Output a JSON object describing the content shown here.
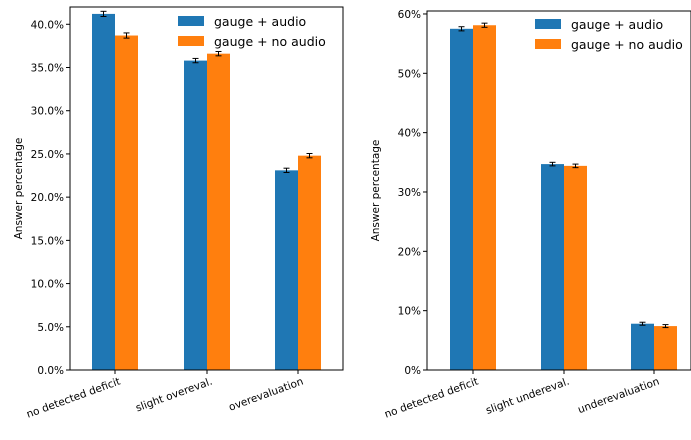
{
  "chart_data": [
    {
      "type": "bar",
      "categories": [
        "no detected deficit",
        "slight overeval.",
        "overevaluation"
      ],
      "series": [
        {
          "name": "gauge + audio",
          "values": [
            41.2,
            35.8,
            23.1
          ],
          "errors": [
            0.3,
            0.25,
            0.25
          ],
          "color": "#1f77b4"
        },
        {
          "name": "gauge + no audio",
          "values": [
            38.7,
            36.6,
            24.8
          ],
          "errors": [
            0.3,
            0.25,
            0.25
          ],
          "color": "#ff7f0e"
        }
      ],
      "ylabel": "Answer percentage",
      "ylim": [
        0,
        42
      ],
      "yticks": [
        0,
        5,
        10,
        15,
        20,
        25,
        30,
        35,
        40
      ],
      "ytick_labels": [
        "0.0%",
        "5.0%",
        "10.0%",
        "15.0%",
        "20.0%",
        "25.0%",
        "30.0%",
        "35.0%",
        "40.0%"
      ],
      "grid": false,
      "legend": "top-right"
    },
    {
      "type": "bar",
      "categories": [
        "no detected deficit",
        "slight undereval.",
        "underevaluation"
      ],
      "series": [
        {
          "name": "gauge + audio",
          "values": [
            57.5,
            34.7,
            7.8
          ],
          "errors": [
            0.35,
            0.3,
            0.25
          ],
          "color": "#1f77b4"
        },
        {
          "name": "gauge + no audio",
          "values": [
            58.1,
            34.4,
            7.4
          ],
          "errors": [
            0.35,
            0.3,
            0.25
          ],
          "color": "#ff7f0e"
        }
      ],
      "ylabel": "Answer percentage",
      "ylim": [
        0,
        60.5
      ],
      "yticks": [
        0,
        10,
        20,
        30,
        40,
        50,
        60
      ],
      "ytick_labels": [
        "0%",
        "10%",
        "20%",
        "30%",
        "40%",
        "50%",
        "60%"
      ],
      "grid": false,
      "legend": "top-right"
    }
  ]
}
